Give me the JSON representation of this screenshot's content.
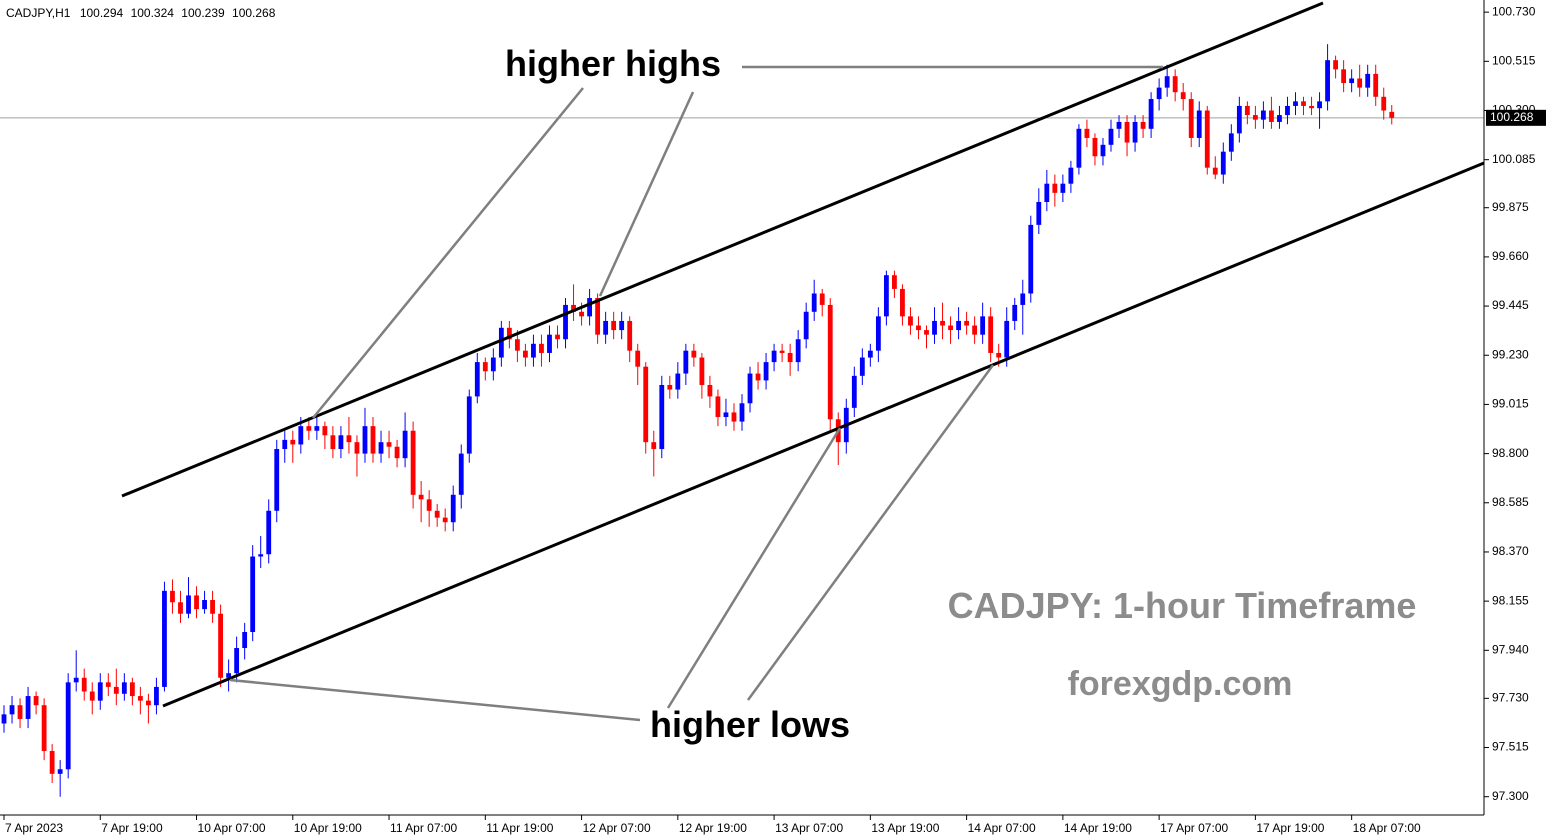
{
  "header": {
    "symbol": "CADJPY,H1"
  },
  "chart_data": {
    "type": "candlestick",
    "annotations": [
      "higher highs",
      "higher lows",
      "CADJPY: 1-hour Timeframe",
      "forexgdp.com"
    ],
    "up_color": "#0000ff",
    "down_color": "#ff0000",
    "ylim": [
      97.22,
      100.77
    ],
    "yticks": [
      {
        "value": 100.73,
        "label": "100.730"
      },
      100.515,
      {
        "value": 100.3,
        "label": "100.300"
      },
      100.085,
      99.875,
      {
        "value": 99.66,
        "label": "99.660"
      },
      99.445,
      {
        "value": 99.23,
        "label": "99.230"
      },
      99.015,
      {
        "value": 98.8,
        "label": "98.800"
      },
      98.585,
      {
        "value": 98.37,
        "label": "98.370"
      },
      98.155,
      {
        "value": 97.94,
        "label": "97.940"
      },
      {
        "value": 97.73,
        "label": "97.730"
      },
      97.515,
      {
        "value": 97.3,
        "label": "97.300"
      }
    ],
    "xlim": [
      -0.5,
      184.5
    ],
    "xticks": [
      {
        "value": 0,
        "label": "7 Apr 2023"
      },
      {
        "value": 12,
        "label": "7 Apr 19:00"
      },
      {
        "value": 24,
        "label": "10 Apr 07:00"
      },
      {
        "value": 36,
        "label": "10 Apr 19:00"
      },
      {
        "value": 48,
        "label": "11 Apr 07:00"
      },
      {
        "value": 60,
        "label": "11 Apr 19:00"
      },
      {
        "value": 72,
        "label": "12 Apr 07:00"
      },
      {
        "value": 84,
        "label": "12 Apr 19:00"
      },
      {
        "value": 96,
        "label": "13 Apr 07:00"
      },
      {
        "value": 108,
        "label": "13 Apr 19:00"
      },
      {
        "value": 120,
        "label": "14 Apr 07:00"
      },
      {
        "value": 132,
        "label": "14 Apr 19:00"
      },
      {
        "value": 144,
        "label": "17 Apr 07:00"
      },
      {
        "value": 156,
        "label": "17 Apr 19:00"
      },
      {
        "value": 168,
        "label": "18 Apr 07:00"
      }
    ],
    "candles": [
      [
        97.62,
        97.7,
        97.58,
        97.66
      ],
      [
        97.66,
        97.74,
        97.62,
        97.7
      ],
      [
        97.7,
        97.73,
        97.6,
        97.64
      ],
      [
        97.64,
        97.78,
        97.6,
        97.74
      ],
      [
        97.74,
        97.76,
        97.66,
        97.7
      ],
      [
        97.7,
        97.73,
        97.46,
        97.5
      ],
      [
        97.5,
        97.53,
        97.36,
        97.4
      ],
      [
        97.4,
        97.46,
        97.3,
        97.42
      ],
      [
        97.42,
        97.84,
        97.38,
        97.8
      ],
      [
        97.8,
        97.94,
        97.76,
        97.82
      ],
      [
        97.82,
        97.86,
        97.72,
        97.76
      ],
      [
        97.76,
        97.8,
        97.66,
        97.72
      ],
      [
        97.72,
        97.84,
        97.68,
        97.8
      ],
      [
        97.8,
        97.84,
        97.74,
        97.78
      ],
      [
        97.78,
        97.86,
        97.7,
        97.75
      ],
      [
        97.75,
        97.84,
        97.72,
        97.8
      ],
      [
        97.8,
        97.82,
        97.7,
        97.74
      ],
      [
        97.74,
        97.78,
        97.66,
        97.72
      ],
      [
        97.72,
        97.75,
        97.62,
        97.7
      ],
      [
        97.7,
        97.82,
        97.66,
        97.78
      ],
      [
        97.78,
        98.24,
        97.76,
        98.2
      ],
      [
        98.2,
        98.25,
        98.1,
        98.15
      ],
      [
        98.15,
        98.2,
        98.06,
        98.1
      ],
      [
        98.1,
        98.26,
        98.08,
        98.18
      ],
      [
        98.18,
        98.22,
        98.08,
        98.12
      ],
      [
        98.12,
        98.2,
        98.1,
        98.16
      ],
      [
        98.16,
        98.2,
        98.06,
        98.1
      ],
      [
        98.1,
        98.14,
        97.78,
        97.82
      ],
      [
        97.82,
        97.9,
        97.76,
        97.84
      ],
      [
        97.84,
        98.0,
        97.8,
        97.95
      ],
      [
        97.95,
        98.06,
        97.9,
        98.02
      ],
      [
        98.02,
        98.4,
        97.98,
        98.35
      ],
      [
        98.35,
        98.44,
        98.3,
        98.36
      ],
      [
        98.36,
        98.6,
        98.32,
        98.55
      ],
      [
        98.55,
        98.86,
        98.5,
        98.82
      ],
      [
        98.82,
        98.9,
        98.76,
        98.86
      ],
      [
        98.86,
        98.9,
        98.76,
        98.84
      ],
      [
        98.84,
        98.96,
        98.8,
        98.92
      ],
      [
        98.92,
        98.96,
        98.86,
        98.9
      ],
      [
        98.9,
        98.96,
        98.86,
        98.92
      ],
      [
        98.92,
        98.94,
        98.82,
        98.88
      ],
      [
        98.88,
        98.92,
        98.78,
        98.82
      ],
      [
        98.82,
        98.92,
        98.78,
        98.88
      ],
      [
        98.88,
        98.96,
        98.8,
        98.85
      ],
      [
        98.85,
        98.88,
        98.7,
        98.8
      ],
      [
        98.8,
        99.0,
        98.76,
        98.92
      ],
      [
        98.92,
        98.96,
        98.76,
        98.8
      ],
      [
        98.8,
        98.9,
        98.76,
        98.85
      ],
      [
        98.85,
        98.9,
        98.78,
        98.83
      ],
      [
        98.83,
        98.86,
        98.74,
        98.78
      ],
      [
        98.78,
        98.98,
        98.74,
        98.9
      ],
      [
        98.9,
        98.94,
        98.56,
        98.62
      ],
      [
        98.62,
        98.68,
        98.5,
        98.6
      ],
      [
        98.6,
        98.64,
        98.48,
        98.55
      ],
      [
        98.55,
        98.58,
        98.48,
        98.52
      ],
      [
        98.52,
        98.56,
        98.46,
        98.5
      ],
      [
        98.5,
        98.66,
        98.46,
        98.62
      ],
      [
        98.62,
        98.84,
        98.56,
        98.8
      ],
      [
        98.8,
        99.08,
        98.76,
        99.05
      ],
      [
        99.05,
        99.24,
        99.02,
        99.2
      ],
      [
        99.2,
        99.22,
        99.12,
        99.16
      ],
      [
        99.16,
        99.26,
        99.12,
        99.22
      ],
      [
        99.22,
        99.38,
        99.18,
        99.35
      ],
      [
        99.35,
        99.38,
        99.26,
        99.3
      ],
      [
        99.3,
        99.34,
        99.2,
        99.25
      ],
      [
        99.25,
        99.28,
        99.18,
        99.22
      ],
      [
        99.22,
        99.32,
        99.18,
        99.28
      ],
      [
        99.28,
        99.32,
        99.18,
        99.24
      ],
      [
        99.24,
        99.36,
        99.2,
        99.32
      ],
      [
        99.32,
        99.36,
        99.26,
        99.3
      ],
      [
        99.3,
        99.48,
        99.26,
        99.45
      ],
      [
        99.45,
        99.54,
        99.38,
        99.42
      ],
      [
        99.42,
        99.46,
        99.36,
        99.4
      ],
      [
        99.4,
        99.52,
        99.36,
        99.48
      ],
      [
        99.48,
        99.5,
        99.28,
        99.32
      ],
      [
        99.32,
        99.42,
        99.28,
        99.38
      ],
      [
        99.38,
        99.42,
        99.3,
        99.34
      ],
      [
        99.34,
        99.42,
        99.3,
        99.38
      ],
      [
        99.38,
        99.4,
        99.2,
        99.25
      ],
      [
        99.25,
        99.28,
        99.1,
        99.18
      ],
      [
        99.18,
        99.2,
        98.8,
        98.85
      ],
      [
        98.85,
        98.9,
        98.7,
        98.82
      ],
      [
        98.82,
        99.14,
        98.78,
        99.1
      ],
      [
        99.1,
        99.14,
        99.04,
        99.08
      ],
      [
        99.08,
        99.2,
        99.04,
        99.15
      ],
      [
        99.15,
        99.28,
        99.1,
        99.25
      ],
      [
        99.25,
        99.28,
        99.18,
        99.22
      ],
      [
        99.22,
        99.24,
        99.04,
        99.1
      ],
      [
        99.1,
        99.14,
        99.0,
        99.05
      ],
      [
        99.05,
        99.08,
        98.92,
        98.96
      ],
      [
        98.96,
        99.04,
        98.92,
        98.98
      ],
      [
        98.98,
        99.02,
        98.9,
        98.94
      ],
      [
        98.94,
        99.06,
        98.9,
        99.02
      ],
      [
        99.02,
        99.18,
        98.98,
        99.15
      ],
      [
        99.15,
        99.2,
        99.08,
        99.12
      ],
      [
        99.12,
        99.24,
        99.08,
        99.2
      ],
      [
        99.2,
        99.28,
        99.16,
        99.25
      ],
      [
        99.25,
        99.28,
        99.2,
        99.24
      ],
      [
        99.24,
        99.28,
        99.14,
        99.2
      ],
      [
        99.2,
        99.34,
        99.16,
        99.3
      ],
      [
        99.3,
        99.46,
        99.26,
        99.42
      ],
      [
        99.42,
        99.56,
        99.38,
        99.5
      ],
      [
        99.5,
        99.52,
        99.4,
        99.45
      ],
      [
        99.45,
        99.48,
        98.9,
        98.95
      ],
      [
        98.95,
        98.98,
        98.75,
        98.85
      ],
      [
        98.85,
        99.04,
        98.8,
        99.0
      ],
      [
        99.0,
        99.18,
        98.96,
        99.14
      ],
      [
        99.14,
        99.26,
        99.1,
        99.22
      ],
      [
        99.22,
        99.28,
        99.18,
        99.25
      ],
      [
        99.25,
        99.44,
        99.2,
        99.4
      ],
      [
        99.4,
        99.6,
        99.36,
        99.58
      ],
      [
        99.58,
        99.6,
        99.48,
        99.52
      ],
      [
        99.52,
        99.54,
        99.36,
        99.4
      ],
      [
        99.4,
        99.44,
        99.32,
        99.36
      ],
      [
        99.36,
        99.4,
        99.3,
        99.34
      ],
      [
        99.34,
        99.36,
        99.26,
        99.32
      ],
      [
        99.32,
        99.44,
        99.28,
        99.38
      ],
      [
        99.38,
        99.46,
        99.3,
        99.36
      ],
      [
        99.36,
        99.4,
        99.28,
        99.34
      ],
      [
        99.34,
        99.44,
        99.3,
        99.38
      ],
      [
        99.38,
        99.42,
        99.32,
        99.36
      ],
      [
        99.36,
        99.4,
        99.28,
        99.32
      ],
      [
        99.32,
        99.46,
        99.28,
        99.4
      ],
      [
        99.4,
        99.44,
        99.2,
        99.24
      ],
      [
        99.24,
        99.28,
        99.18,
        99.22
      ],
      [
        99.22,
        99.44,
        99.18,
        99.38
      ],
      [
        99.38,
        99.48,
        99.34,
        99.45
      ],
      [
        99.45,
        99.56,
        99.32,
        99.5
      ],
      [
        99.5,
        99.84,
        99.46,
        99.8
      ],
      [
        99.8,
        99.96,
        99.76,
        99.9
      ],
      [
        99.9,
        100.04,
        99.86,
        99.98
      ],
      [
        99.98,
        100.02,
        99.88,
        99.94
      ],
      [
        99.94,
        100.02,
        99.9,
        99.98
      ],
      [
        99.98,
        100.08,
        99.94,
        100.05
      ],
      [
        100.05,
        100.24,
        100.02,
        100.22
      ],
      [
        100.22,
        100.26,
        100.14,
        100.18
      ],
      [
        100.18,
        100.2,
        100.06,
        100.1
      ],
      [
        100.1,
        100.18,
        100.06,
        100.15
      ],
      [
        100.15,
        100.26,
        100.12,
        100.22
      ],
      [
        100.22,
        100.28,
        100.18,
        100.25
      ],
      [
        100.25,
        100.28,
        100.1,
        100.16
      ],
      [
        100.16,
        100.28,
        100.12,
        100.25
      ],
      [
        100.25,
        100.28,
        100.18,
        100.22
      ],
      [
        100.22,
        100.38,
        100.18,
        100.35
      ],
      [
        100.35,
        100.44,
        100.3,
        100.4
      ],
      [
        100.4,
        100.5,
        100.36,
        100.45
      ],
      [
        100.45,
        100.48,
        100.34,
        100.38
      ],
      [
        100.38,
        100.42,
        100.3,
        100.35
      ],
      [
        100.35,
        100.38,
        100.14,
        100.18
      ],
      [
        100.18,
        100.34,
        100.14,
        100.3
      ],
      [
        100.3,
        100.32,
        100.02,
        100.05
      ],
      [
        100.05,
        100.1,
        100.0,
        100.02
      ],
      [
        100.02,
        100.16,
        99.98,
        100.12
      ],
      [
        100.12,
        100.24,
        100.08,
        100.2
      ],
      [
        100.2,
        100.36,
        100.16,
        100.32
      ],
      [
        100.32,
        100.34,
        100.24,
        100.28
      ],
      [
        100.28,
        100.32,
        100.22,
        100.26
      ],
      [
        100.26,
        100.34,
        100.22,
        100.3
      ],
      [
        100.3,
        100.36,
        100.22,
        100.25
      ],
      [
        100.25,
        100.32,
        100.22,
        100.28
      ],
      [
        100.28,
        100.36,
        100.24,
        100.32
      ],
      [
        100.32,
        100.38,
        100.28,
        100.34
      ],
      [
        100.34,
        100.36,
        100.28,
        100.32
      ],
      [
        100.32,
        100.36,
        100.28,
        100.31
      ],
      [
        100.31,
        100.38,
        100.22,
        100.34
      ],
      [
        100.34,
        100.59,
        100.3,
        100.52
      ],
      [
        100.52,
        100.54,
        100.44,
        100.48
      ],
      [
        100.48,
        100.52,
        100.38,
        100.42
      ],
      [
        100.42,
        100.48,
        100.38,
        100.44
      ],
      [
        100.44,
        100.5,
        100.36,
        100.4
      ],
      [
        100.4,
        100.5,
        100.36,
        100.46
      ],
      [
        100.46,
        100.5,
        100.32,
        100.36
      ],
      [
        100.36,
        100.4,
        100.26,
        100.3
      ],
      [
        100.294,
        100.324,
        100.239,
        100.268
      ]
    ]
  }
}
